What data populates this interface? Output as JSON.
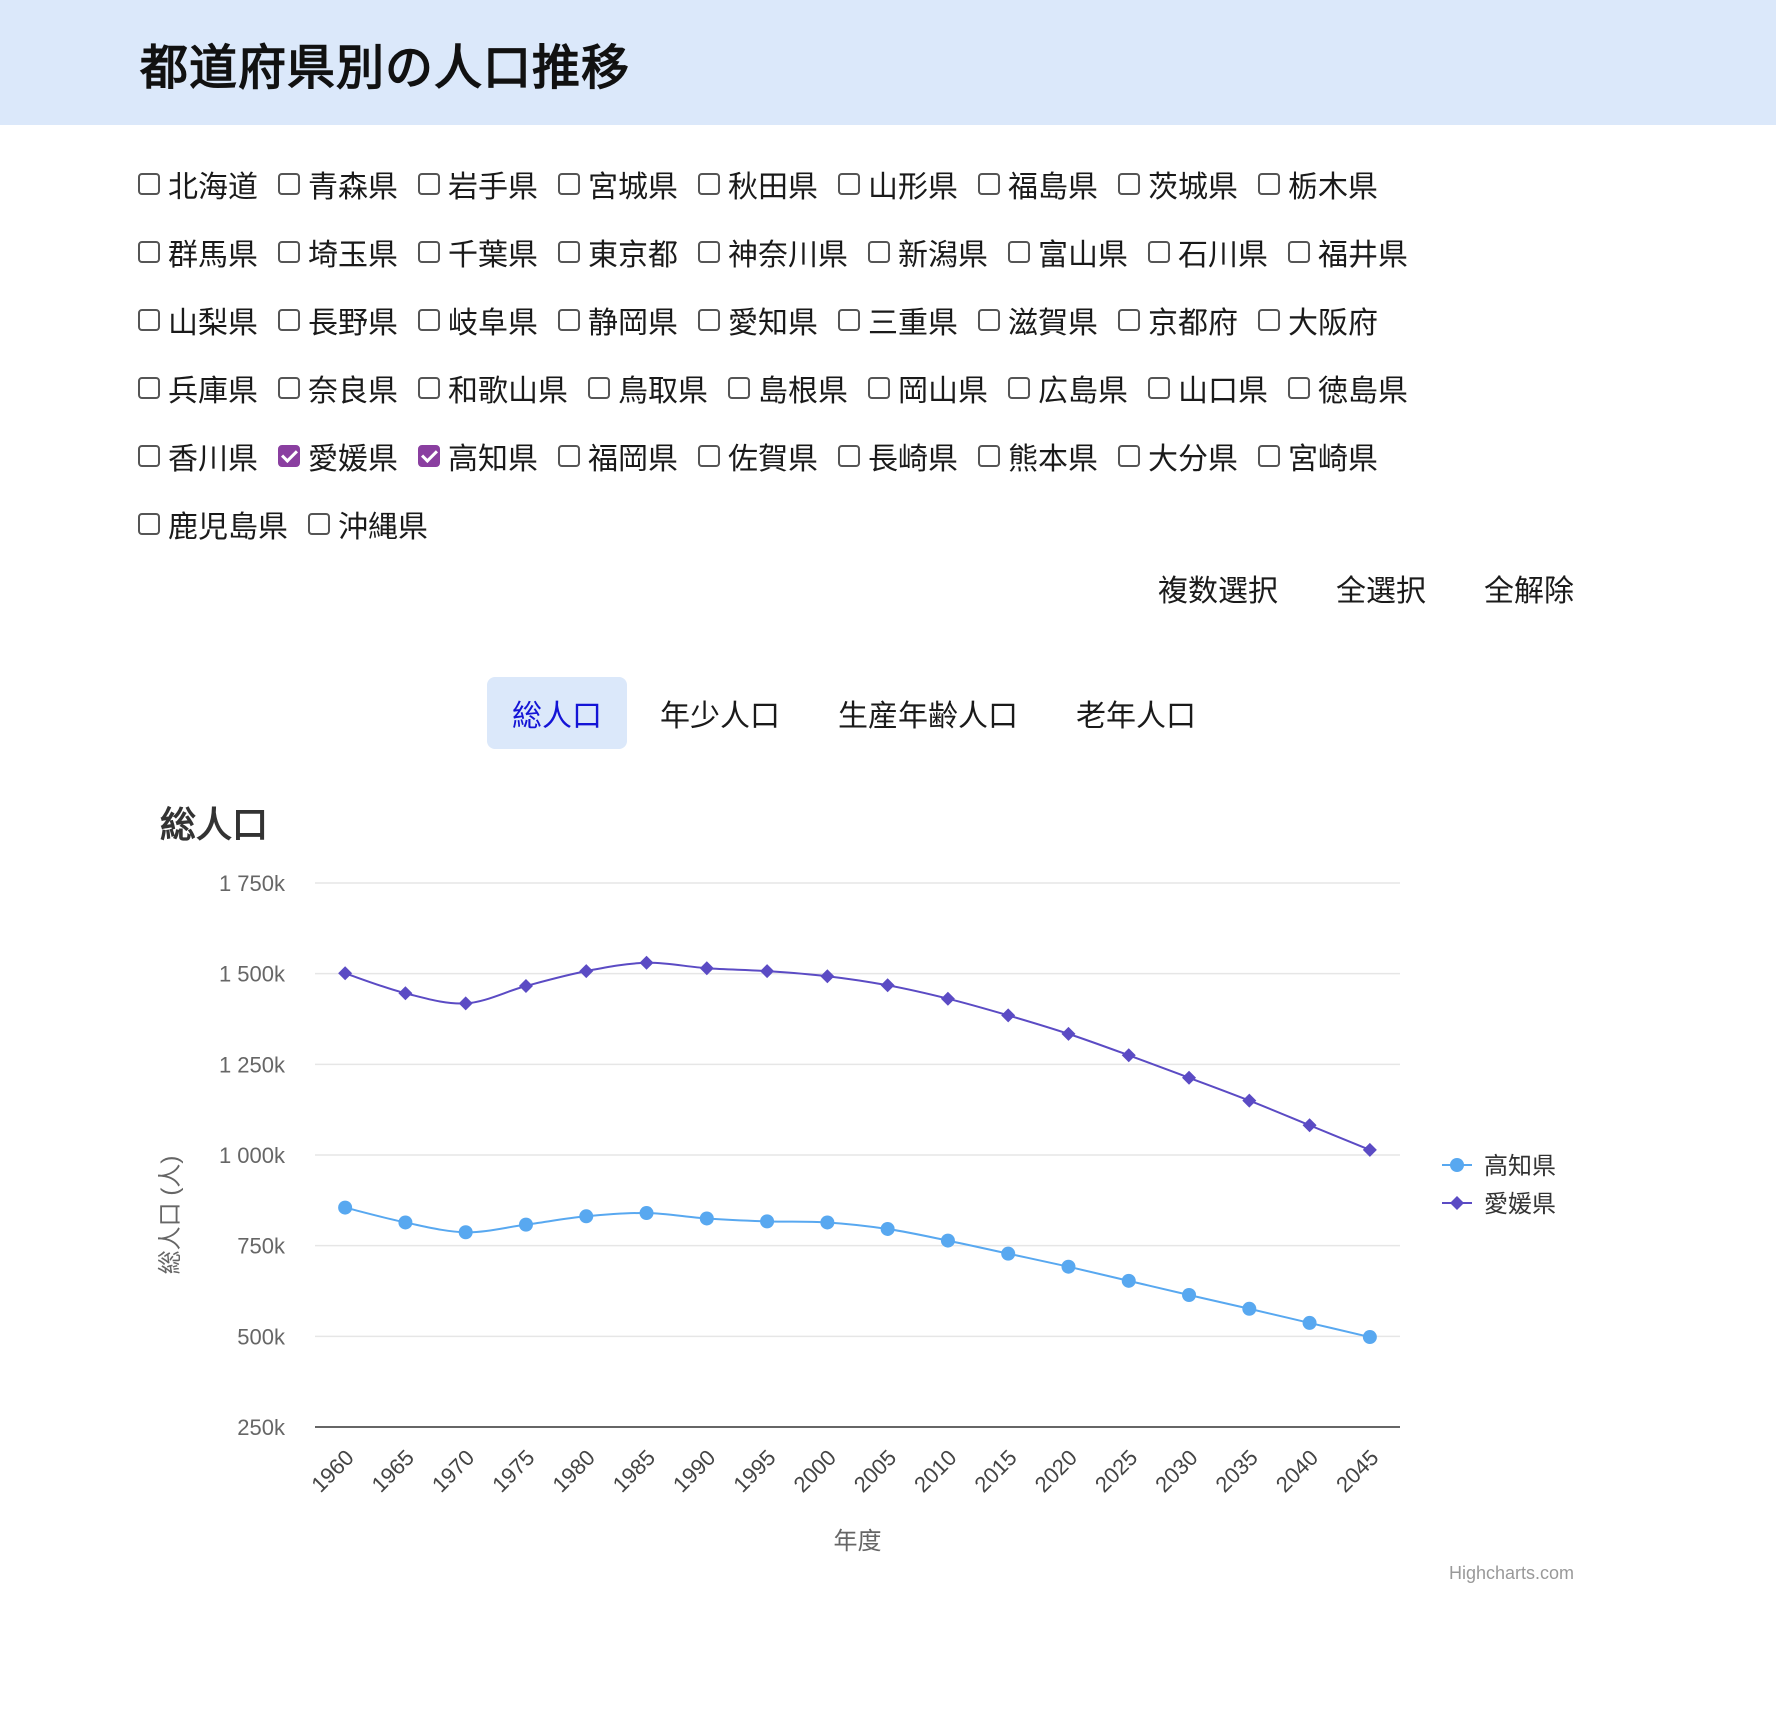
{
  "header": {
    "title": "都道府県別の人口推移"
  },
  "prefectures": [
    [
      "北海道",
      "青森県",
      "岩手県",
      "宮城県",
      "秋田県",
      "山形県",
      "福島県",
      "茨城県",
      "栃木県"
    ],
    [
      "群馬県",
      "埼玉県",
      "千葉県",
      "東京都",
      "神奈川県",
      "新潟県",
      "富山県",
      "石川県",
      "福井県"
    ],
    [
      "山梨県",
      "長野県",
      "岐阜県",
      "静岡県",
      "愛知県",
      "三重県",
      "滋賀県",
      "京都府",
      "大阪府"
    ],
    [
      "兵庫県",
      "奈良県",
      "和歌山県",
      "鳥取県",
      "島根県",
      "岡山県",
      "広島県",
      "山口県",
      "徳島県"
    ],
    [
      "香川県",
      "愛媛県",
      "高知県",
      "福岡県",
      "佐賀県",
      "長崎県",
      "熊本県",
      "大分県",
      "宮崎県"
    ],
    [
      "鹿児島県",
      "沖縄県"
    ]
  ],
  "checked": [
    "愛媛県",
    "高知県"
  ],
  "actions": {
    "multi": "複数選択",
    "all": "全選択",
    "none": "全解除"
  },
  "tabs": [
    {
      "label": "総人口",
      "active": true
    },
    {
      "label": "年少人口",
      "active": false
    },
    {
      "label": "生産年齢人口",
      "active": false
    },
    {
      "label": "老年人口",
      "active": false
    }
  ],
  "credit": "Highcharts.com",
  "chart_data": {
    "type": "line",
    "title": "総人口",
    "xlabel": "年度",
    "ylabel": "総人口 (人)",
    "categories": [
      "1960",
      "1965",
      "1970",
      "1975",
      "1980",
      "1985",
      "1990",
      "1995",
      "2000",
      "2005",
      "2010",
      "2015",
      "2020",
      "2025",
      "2030",
      "2035",
      "2040",
      "2045"
    ],
    "ylim": [
      250000,
      1750000
    ],
    "yticks": [
      {
        "value": 250000,
        "label": "250k"
      },
      {
        "value": 500000,
        "label": "500k"
      },
      {
        "value": 750000,
        "label": "750k"
      },
      {
        "value": 1000000,
        "label": "1 000k"
      },
      {
        "value": 1250000,
        "label": "1 250k"
      },
      {
        "value": 1500000,
        "label": "1 500k"
      },
      {
        "value": 1750000,
        "label": "1 750k"
      }
    ],
    "grid": true,
    "legend": "right",
    "series": [
      {
        "name": "高知県",
        "color": "#58a8f0",
        "marker": "circle",
        "values": [
          855000,
          814000,
          787000,
          808000,
          831000,
          840000,
          825000,
          817000,
          814000,
          796000,
          764000,
          728000,
          692000,
          653000,
          614000,
          576000,
          537000,
          498000
        ]
      },
      {
        "name": "愛媛県",
        "color": "#5b4bc4",
        "marker": "diamond",
        "values": [
          1501000,
          1446000,
          1418000,
          1466000,
          1507000,
          1530000,
          1515000,
          1507000,
          1493000,
          1468000,
          1431000,
          1385000,
          1334000,
          1275000,
          1213000,
          1150000,
          1082000,
          1014000
        ]
      }
    ]
  }
}
